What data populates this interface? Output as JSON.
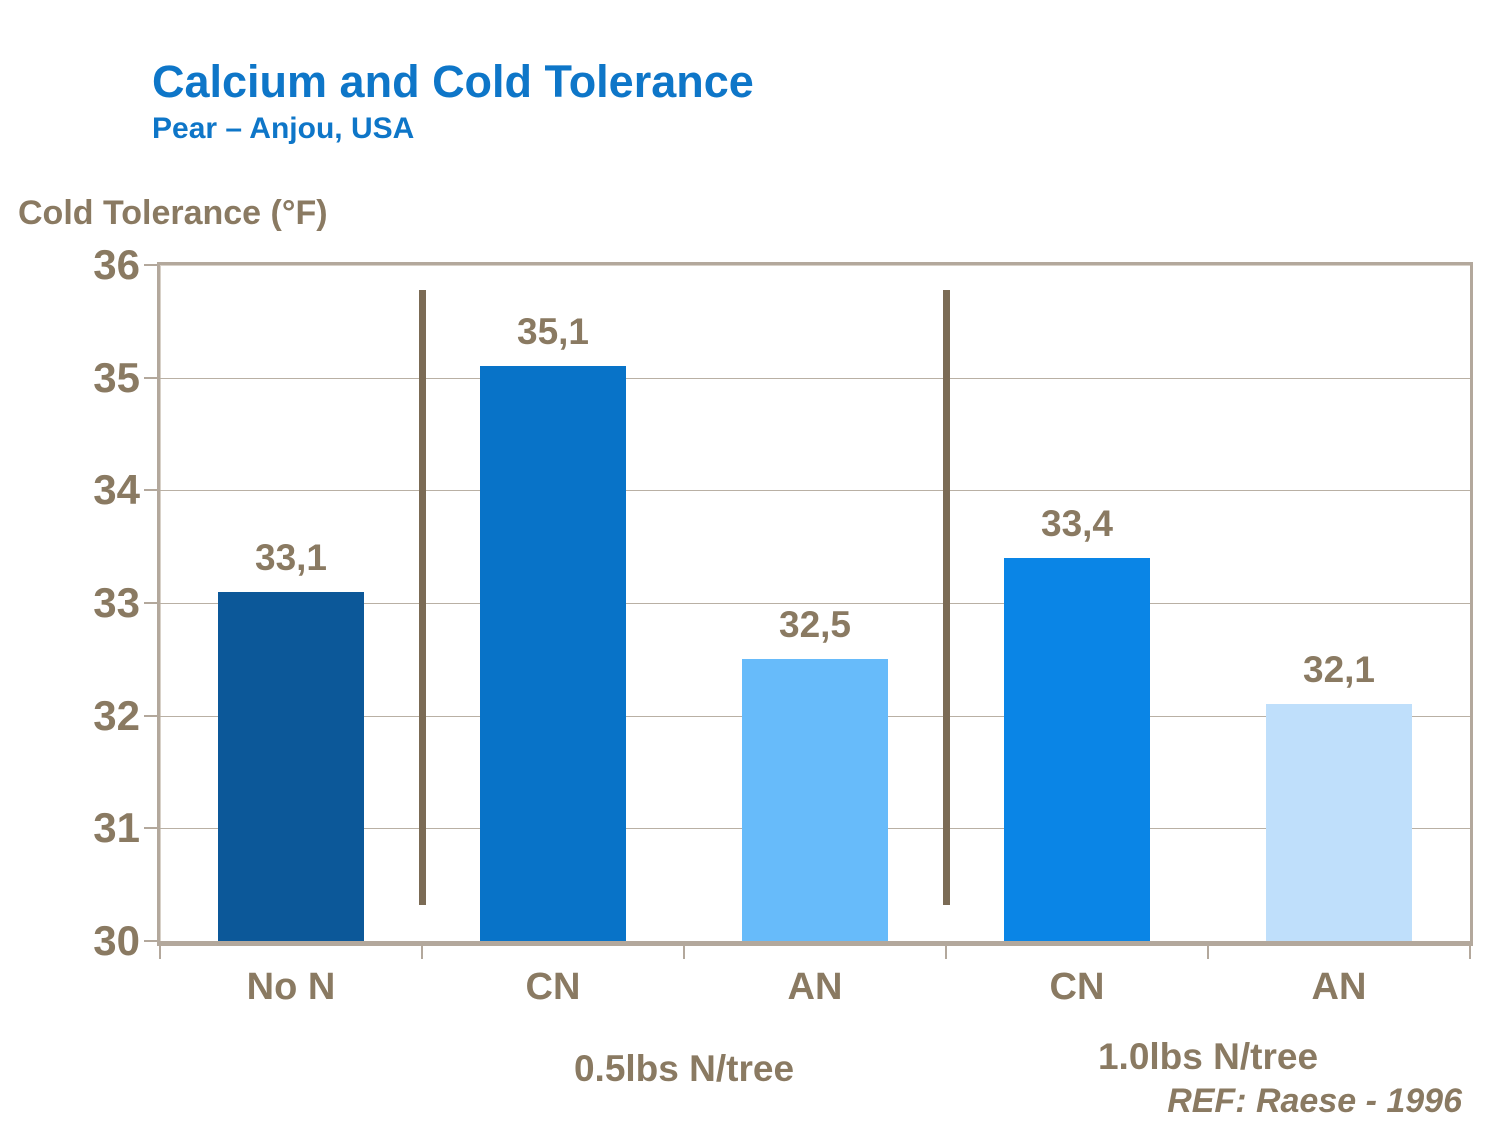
{
  "header": {
    "title": "Calcium and Cold Tolerance",
    "subtitle": "Pear – Anjou, USA",
    "title_color": "#0e76c8"
  },
  "footer": {
    "reference": "REF: Raese - 1996"
  },
  "chart_data": {
    "type": "bar",
    "title": "Calcium and Cold Tolerance",
    "subtitle": "Pear – Anjou, USA",
    "ylabel": "Cold Tolerance (°F)",
    "xlabel": "",
    "ylim": [
      30,
      36
    ],
    "ytick_step": 1,
    "ytick_labels": [
      "30",
      "31",
      "32",
      "33",
      "34",
      "35",
      "36"
    ],
    "grid": true,
    "legend": "none",
    "categories": [
      "No N",
      "CN",
      "AN",
      "CN",
      "AN"
    ],
    "values": [
      33.1,
      35.1,
      32.5,
      33.4,
      32.1
    ],
    "value_labels": [
      "33,1",
      "35,1",
      "32,5",
      "33,4",
      "32,1"
    ],
    "bar_colors": [
      "#0c5899",
      "#0873c8",
      "#67bbfa",
      "#0a85e6",
      "#bfdffb"
    ],
    "groups": [
      {
        "label": "0.5lbs N/tree",
        "span": [
          1,
          2
        ]
      },
      {
        "label": "1.0lbs N/tree",
        "span": [
          3,
          4
        ]
      }
    ],
    "separators_after_slot": [
      0,
      2
    ],
    "colors": {
      "axis": "#b3a89c",
      "grid": "#b9b0a4",
      "separator": "#7b6b55",
      "text": "#8a7a62"
    },
    "reference": "REF: Raese - 1996"
  }
}
